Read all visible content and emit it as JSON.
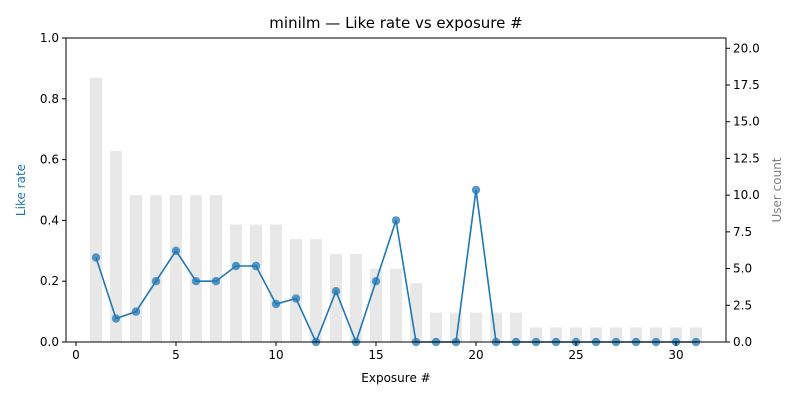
{
  "chart_data": {
    "type": "line",
    "title": "minilm — Like rate vs exposure #",
    "xlabel": "Exposure #",
    "ylabel": "Like rate",
    "y2label": "User count",
    "xlim": [
      -0.5,
      32.5
    ],
    "ylim": [
      0,
      1.0
    ],
    "y2lim": [
      0,
      20.7
    ],
    "xticks": [
      0,
      5,
      10,
      15,
      20,
      25,
      30
    ],
    "yticks": [
      0.0,
      0.2,
      0.4,
      0.6,
      0.8,
      1.0
    ],
    "y2ticks": [
      0.0,
      2.5,
      5.0,
      7.5,
      10.0,
      12.5,
      15.0,
      17.5,
      20.0
    ],
    "grid": false,
    "colors": {
      "line": "#1f77b4",
      "bars": "#e8e8e8",
      "ylabel": "#1f77b4",
      "y2label": "#808080"
    },
    "x": [
      1,
      2,
      3,
      4,
      5,
      6,
      7,
      8,
      9,
      10,
      11,
      12,
      13,
      14,
      15,
      16,
      17,
      18,
      19,
      20,
      21,
      22,
      23,
      24,
      25,
      26,
      27,
      28,
      29,
      30,
      31
    ],
    "series": [
      {
        "name": "Like rate",
        "axis": "left",
        "kind": "line",
        "values": [
          0.278,
          0.077,
          0.1,
          0.2,
          0.3,
          0.2,
          0.2,
          0.25,
          0.25,
          0.125,
          0.143,
          0.0,
          0.167,
          0.0,
          0.2,
          0.4,
          0.0,
          0.0,
          0.0,
          0.5,
          0.0,
          0.0,
          0.0,
          0.0,
          0.0,
          0.0,
          0.0,
          0.0,
          0.0,
          0.0,
          0.0
        ]
      },
      {
        "name": "User count",
        "axis": "right",
        "kind": "bar",
        "values": [
          18,
          13,
          10,
          10,
          10,
          10,
          10,
          8,
          8,
          8,
          7,
          7,
          6,
          6,
          5,
          5,
          4,
          2,
          2,
          2,
          2,
          2,
          1,
          1,
          1,
          1,
          1,
          1,
          1,
          1,
          1
        ]
      }
    ]
  }
}
